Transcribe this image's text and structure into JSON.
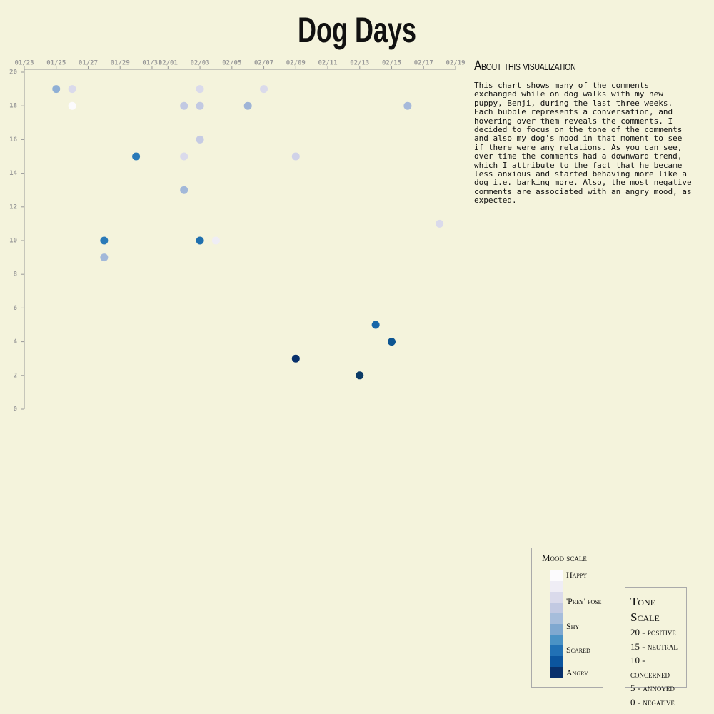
{
  "chart_data": {
    "type": "scatter",
    "title": "Dog Days",
    "x": [
      "01/25",
      "01/26",
      "01/26",
      "01/28",
      "01/28",
      "01/30",
      "02/02",
      "02/02",
      "02/02",
      "02/03",
      "02/03",
      "02/03",
      "02/03",
      "02/04",
      "02/06",
      "02/07",
      "02/09",
      "02/09",
      "02/13",
      "02/14",
      "02/15",
      "02/16",
      "02/18"
    ],
    "values": [
      19,
      19,
      18,
      10,
      9,
      15,
      18,
      15,
      13,
      19,
      18,
      16,
      10,
      10,
      18,
      19,
      15,
      3,
      2,
      5,
      4,
      18,
      11
    ],
    "colors": [
      "#8fafd5",
      "#dadaeb",
      "#fcfbfd",
      "#2a7ab8",
      "#a2b8d9",
      "#2a7ab8",
      "#c2c9e2",
      "#dadaeb",
      "#a2b8d9",
      "#dadaeb",
      "#c2c9e2",
      "#c6cbe3",
      "#1f6fae",
      "#efedf5",
      "#9fb4d6",
      "#dadaeb",
      "#d0d2e8",
      "#08306b",
      "#0b3a66",
      "#1766a8",
      "#0d5592",
      "#a6b9da",
      "#dadaeb"
    ],
    "xlim": [
      "01/23",
      "02/19"
    ],
    "xticks": [
      "01/23",
      "01/25",
      "01/27",
      "01/29",
      "01/31",
      "02/01",
      "02/03",
      "02/05",
      "02/07",
      "02/09",
      "02/11",
      "02/13",
      "02/15",
      "02/17",
      "02/19"
    ],
    "ylim": [
      0,
      20
    ],
    "yticks": [
      0,
      2,
      4,
      6,
      8,
      10,
      12,
      14,
      16,
      18,
      20
    ]
  },
  "about": {
    "title": "About this visualization",
    "text": "This chart shows many of the comments exchanged while on dog walks with my new puppy, Benji, during the last three weeks. Each bubble represents a conversation, and hovering over them reveals the comments. I decided to focus on the tone of the comments and also my dog's mood in that moment to see if there were any relations. As you can see, over time the comments had a downward trend, which I attribute to the fact that he became less anxious and started behaving more like a dog i.e. barking more. Also, the most negative comments are associated with an angry mood, as expected."
  },
  "mood_scale": {
    "title": "Mood scale",
    "colors": [
      "#fcfbfd",
      "#efedf5",
      "#dadaeb",
      "#c2c9e2",
      "#a6bddb",
      "#7fa8d0",
      "#4a92c5",
      "#2171b5",
      "#0b559f",
      "#08306b"
    ],
    "labels": [
      "Happy",
      "'Prey' pose",
      "Shy",
      "Scared",
      "Angry"
    ]
  },
  "tone_scale": {
    "title": "Tone Scale",
    "items": [
      "20 - positive",
      "15 - neutral",
      "10 - concerned",
      "5 - annoyed",
      "0 - negative"
    ]
  }
}
